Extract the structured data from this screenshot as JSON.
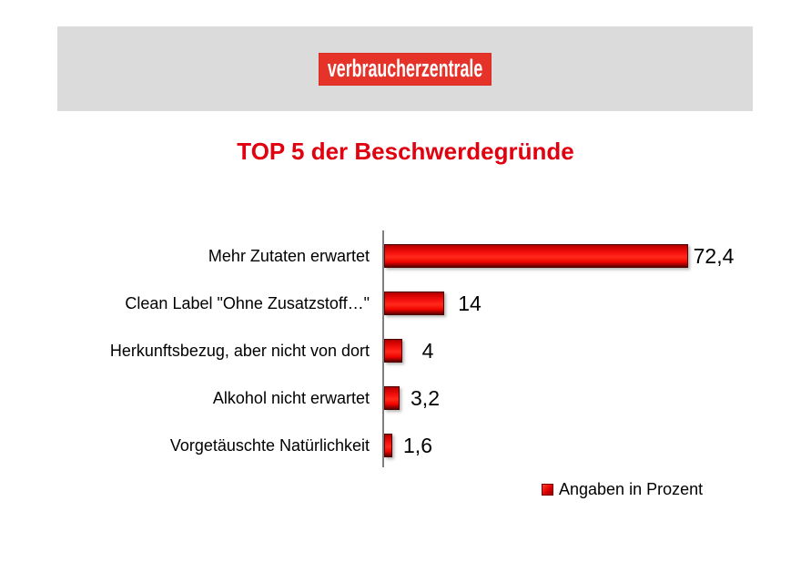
{
  "logo": {
    "text": "verbraucherzentrale",
    "bg_color": "#e63329",
    "text_color": "#ffffff"
  },
  "title": {
    "text": "TOP 5 der Beschwerdegründe",
    "color": "#e1000f"
  },
  "chart_data": {
    "type": "bar",
    "orientation": "horizontal",
    "title": "TOP 5 der Beschwerdegründe",
    "categories": [
      "Mehr Zutaten erwartet",
      "Clean Label \"Ohne Zusatzstoff…\"",
      "Herkunftsbezug, aber nicht von dort",
      "Alkohol nicht erwartet",
      "Vorgetäuschte Natürlichkeit"
    ],
    "values": [
      72.4,
      14,
      4,
      3.2,
      1.6
    ],
    "value_labels": [
      "72,4",
      "14",
      "4",
      "3,2",
      "1,6"
    ],
    "unit": "Prozent",
    "xlim": [
      0,
      80
    ],
    "grid": false,
    "bar_color": "#f00f0c",
    "axis_color": "#7f7f7f",
    "legend_position": "bottom-right",
    "legend": {
      "label": "Angaben in Prozent",
      "marker_color": "#d60000"
    }
  }
}
